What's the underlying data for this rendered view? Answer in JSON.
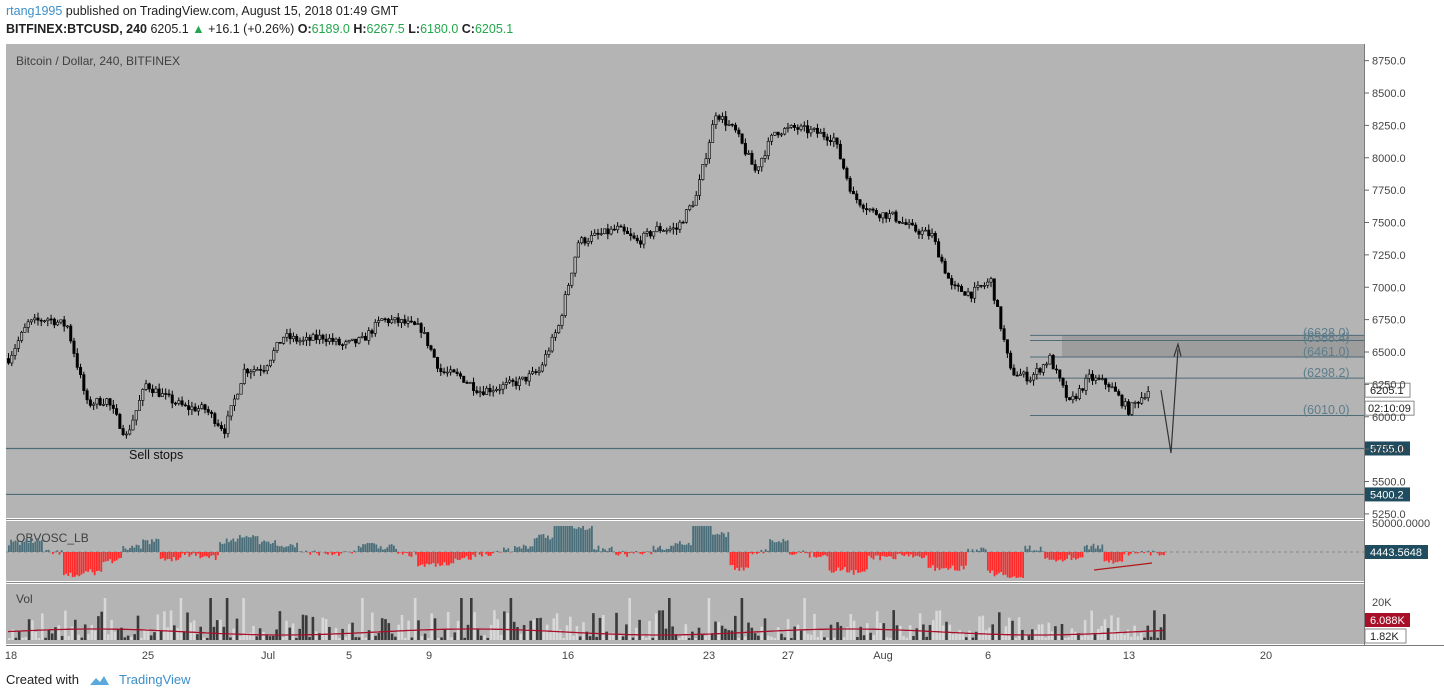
{
  "header": {
    "author": "rtang1995",
    "published_text": "published on TradingView.com, August 15, 2018 01:49 GMT",
    "symbol": "BITFINEX:BTCUSD, 240",
    "last": "6205.1",
    "change": "+16.1 (+0.26%)",
    "o_label": "O:",
    "o_value": "6189.0",
    "h_label": "H:",
    "h_value": "6267.5",
    "l_label": "L:",
    "l_value": "6180.0",
    "c_label": "C:",
    "c_value": "6205.1"
  },
  "footer": {
    "created_with": "Created with",
    "brand": "TradingView"
  },
  "chart_data": {
    "type": "candlestick",
    "title": "Bitcoin / Dollar, 240, BITFINEX",
    "price_axis": {
      "ticks": [
        "8750.0",
        "8500.0",
        "8250.0",
        "8000.0",
        "7750.0",
        "7500.0",
        "7250.0",
        "7000.0",
        "6750.0",
        "6500.0",
        "6250.0",
        "6000.0",
        "5750.0",
        "5500.0",
        "5250.0"
      ],
      "range": [
        5150,
        8840
      ]
    },
    "time_axis": {
      "ticks": [
        "18",
        "25",
        "Jul",
        "5",
        "9",
        "16",
        "23",
        "27",
        "Aug",
        "6",
        "13",
        "20"
      ]
    },
    "price_path": [
      [
        "Jun 18",
        6450
      ],
      [
        "Jun 19",
        6720
      ],
      [
        "Jun 20",
        6760
      ],
      [
        "Jun 21",
        6700
      ],
      [
        "Jun 22",
        6100
      ],
      [
        "Jun 23",
        6130
      ],
      [
        "Jun 24",
        5850
      ],
      [
        "Jun 25",
        6250
      ],
      [
        "Jun 26",
        6150
      ],
      [
        "Jun 27",
        6070
      ],
      [
        "Jun 28",
        6060
      ],
      [
        "Jun 29",
        5900
      ],
      [
        "Jun 30",
        6360
      ],
      [
        "Jul 1",
        6380
      ],
      [
        "Jul 2",
        6620
      ],
      [
        "Jul 3",
        6580
      ],
      [
        "Jul 4",
        6620
      ],
      [
        "Jul 5",
        6550
      ],
      [
        "Jul 6",
        6590
      ],
      [
        "Jul 7",
        6750
      ],
      [
        "Jul 8",
        6730
      ],
      [
        "Jul 9",
        6680
      ],
      [
        "Jul 10",
        6350
      ],
      [
        "Jul 11",
        6310
      ],
      [
        "Jul 12",
        6200
      ],
      [
        "Jul 13",
        6230
      ],
      [
        "Jul 14",
        6270
      ],
      [
        "Jul 15",
        6350
      ],
      [
        "Jul 16",
        6700
      ],
      [
        "Jul 17",
        7350
      ],
      [
        "Jul 18",
        7400
      ],
      [
        "Jul 19",
        7450
      ],
      [
        "Jul 20",
        7350
      ],
      [
        "Jul 21",
        7450
      ],
      [
        "Jul 22",
        7450
      ],
      [
        "Jul 23",
        7700
      ],
      [
        "Jul 24",
        8350
      ],
      [
        "Jul 25",
        8200
      ],
      [
        "Jul 26",
        7900
      ],
      [
        "Jul 27",
        8200
      ],
      [
        "Jul 28",
        8230
      ],
      [
        "Jul 29",
        8200
      ],
      [
        "Jul 30",
        8150
      ],
      [
        "Jul 31",
        7700
      ],
      [
        "Aug 1",
        7580
      ],
      [
        "Aug 2",
        7550
      ],
      [
        "Aug 3",
        7450
      ],
      [
        "Aug 4",
        7400
      ],
      [
        "Aug 5",
        7000
      ],
      [
        "Aug 6",
        6950
      ],
      [
        "Aug 7",
        7050
      ],
      [
        "Aug 8",
        6350
      ],
      [
        "Aug 9",
        6300
      ],
      [
        "Aug 10",
        6450
      ],
      [
        "Aug 11",
        6100
      ],
      [
        "Aug 12",
        6300
      ],
      [
        "Aug 13",
        6250
      ],
      [
        "Aug 14",
        6050
      ],
      [
        "Aug 15",
        6205.1
      ]
    ],
    "levels": [
      {
        "label": "(6628.0)",
        "value": 6628.0
      },
      {
        "label": "(6588.4)",
        "value": 6588.4
      },
      {
        "label": "(6461.0)",
        "value": 6461.0
      },
      {
        "label": "(6298.2)",
        "value": 6298.2
      },
      {
        "label": "(6010.0)",
        "value": 6010.0
      }
    ],
    "support_lines": [
      {
        "value": 5755.0,
        "label": "5755.0"
      },
      {
        "value": 5400.2,
        "label": "5400.2"
      }
    ],
    "zone": {
      "from": 6461.0,
      "to": 6628.0
    },
    "annotation": "Sell stops",
    "last_price": {
      "value": 6205.1,
      "label": "6205.1",
      "countdown": "02:10:09"
    },
    "obv_oscillator": {
      "name": "OBVOSC_LB",
      "axis_top": "50000.0000",
      "last_label": "4443.5648",
      "positive_color": "#4a6f7a",
      "negative_color": "#ff2a2a"
    },
    "volume": {
      "name": "Vol",
      "axis_label": "20K",
      "ma_label": "6.088K",
      "last_label": "1.82K",
      "ma_color": "#a8102a"
    },
    "colors": {
      "background": "#b4b4b4",
      "candle": "#000000",
      "level_line": "#4e6b78",
      "level_text": "#5d7e8c",
      "zone": "#9a9a9a",
      "axis_badge": "#1f4c5e"
    }
  }
}
